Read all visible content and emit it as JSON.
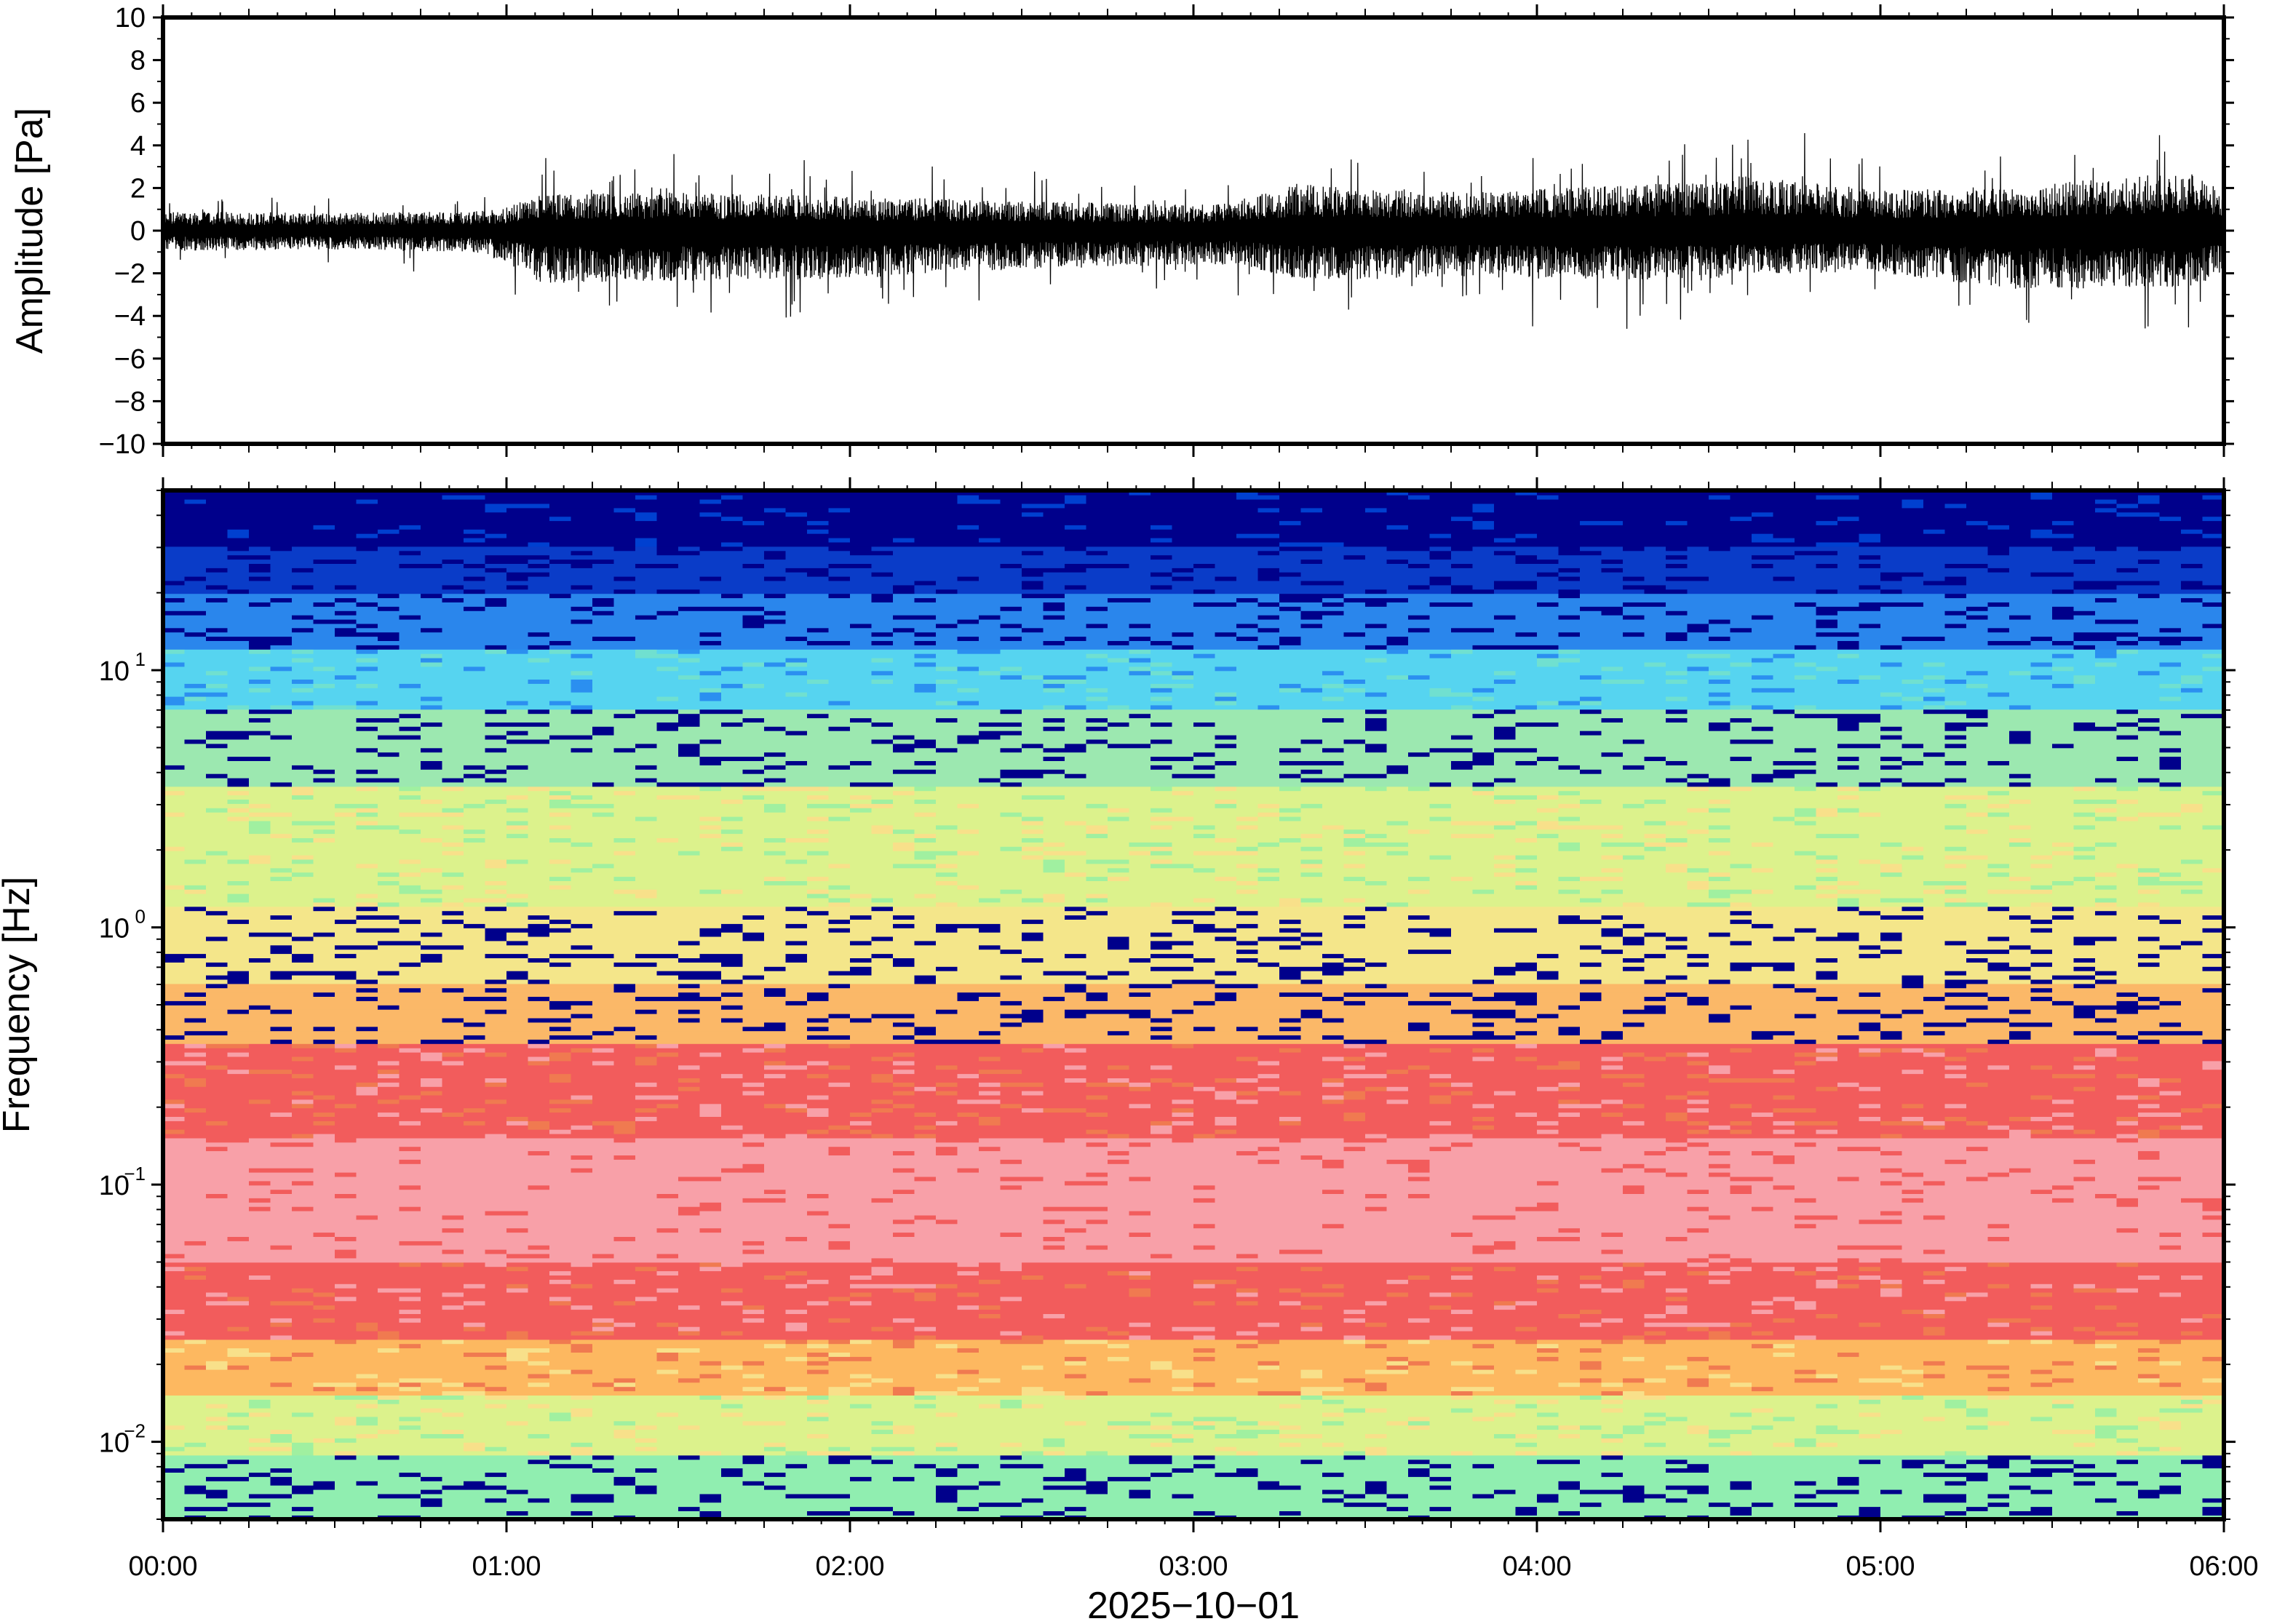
{
  "chart_data": [
    {
      "type": "line",
      "ylabel": "Amplitude [Pa]",
      "ylim": [
        -10,
        10
      ],
      "yticks": [
        10,
        8,
        6,
        4,
        2,
        0,
        -2,
        -4,
        -6,
        -8,
        -10
      ],
      "ytick_labels": [
        "10",
        "8",
        "6",
        "4",
        "2",
        "0",
        "−2",
        "−4",
        "−6",
        "−8",
        "−10"
      ],
      "series": [
        {
          "color": "#000000",
          "envelope_x_hours": [
            0.0,
            0.5,
            0.9,
            1.0,
            1.1,
            1.5,
            2.0,
            2.5,
            3.0,
            3.1,
            3.3,
            3.5,
            3.8,
            4.0,
            4.5,
            4.6,
            5.0,
            5.4,
            5.9,
            6.0
          ],
          "envelope_peak_pa": [
            1.8,
            1.7,
            1.8,
            2.2,
            3.4,
            3.6,
            3.2,
            2.8,
            2.4,
            2.6,
            4.4,
            4.1,
            3.6,
            3.9,
            4.6,
            5.2,
            3.8,
            4.2,
            5.5,
            3.8
          ],
          "envelope_trough_pa": [
            -1.9,
            -1.8,
            -2.0,
            -3.0,
            -4.9,
            -4.8,
            -4.5,
            -3.6,
            -3.2,
            -3.2,
            -4.5,
            -4.6,
            -4.3,
            -4.5,
            -4.7,
            -4.0,
            -4.0,
            -5.5,
            -5.3,
            -4.2
          ]
        }
      ]
    },
    {
      "type": "heatmap",
      "ylabel": "Frequency [Hz]",
      "yscale": "log",
      "ylim": [
        0.005,
        50
      ],
      "yticks": [
        0.01,
        0.1,
        1,
        10
      ],
      "ytick_labels": [
        {
          "base": "10",
          "exp": "−2"
        },
        {
          "base": "10",
          "exp": "−1"
        },
        {
          "base": "10",
          "exp": "0"
        },
        {
          "base": "10",
          "exp": "1"
        }
      ],
      "colormap": [
        "#00008b",
        "#0040d0",
        "#2b8ff0",
        "#56d4f0",
        "#70e0d0",
        "#a0f0a0",
        "#dcf28c",
        "#f8e08a",
        "#fdb860",
        "#f07a50",
        "#f25c5c",
        "#f8a0a8"
      ],
      "row_bands": [
        {
          "f_min": 30,
          "f_max": 50,
          "color": "#00008b"
        },
        {
          "f_min": 20,
          "f_max": 30,
          "color": "#0a3cc8"
        },
        {
          "f_min": 12,
          "f_max": 20,
          "color": "#2a86ec"
        },
        {
          "f_min": 7,
          "f_max": 12,
          "color": "#56d4f0"
        },
        {
          "f_min": 3.5,
          "f_max": 7,
          "color": "#9ce8b0"
        },
        {
          "f_min": 1.2,
          "f_max": 3.5,
          "color": "#dcf28c"
        },
        {
          "f_min": 0.6,
          "f_max": 1.2,
          "color": "#f4e68a"
        },
        {
          "f_min": 0.35,
          "f_max": 0.6,
          "color": "#fbb868"
        },
        {
          "f_min": 0.15,
          "f_max": 0.35,
          "color": "#f25c5c"
        },
        {
          "f_min": 0.05,
          "f_max": 0.15,
          "color": "#f8a0a8"
        },
        {
          "f_min": 0.025,
          "f_max": 0.05,
          "color": "#f25c5c"
        },
        {
          "f_min": 0.015,
          "f_max": 0.025,
          "color": "#fdb860"
        },
        {
          "f_min": 0.009,
          "f_max": 0.015,
          "color": "#dcf28c"
        },
        {
          "f_min": 0.005,
          "f_max": 0.009,
          "color": "#90eeb0"
        }
      ]
    }
  ],
  "x_axis": {
    "xlim_hours": [
      0,
      6
    ],
    "ticks_hours": [
      0,
      1,
      2,
      3,
      4,
      5,
      6
    ],
    "tick_labels": [
      "00:00",
      "01:00",
      "02:00",
      "03:00",
      "04:00",
      "05:00",
      "06:00"
    ],
    "xlabel": "2025−10−01"
  }
}
